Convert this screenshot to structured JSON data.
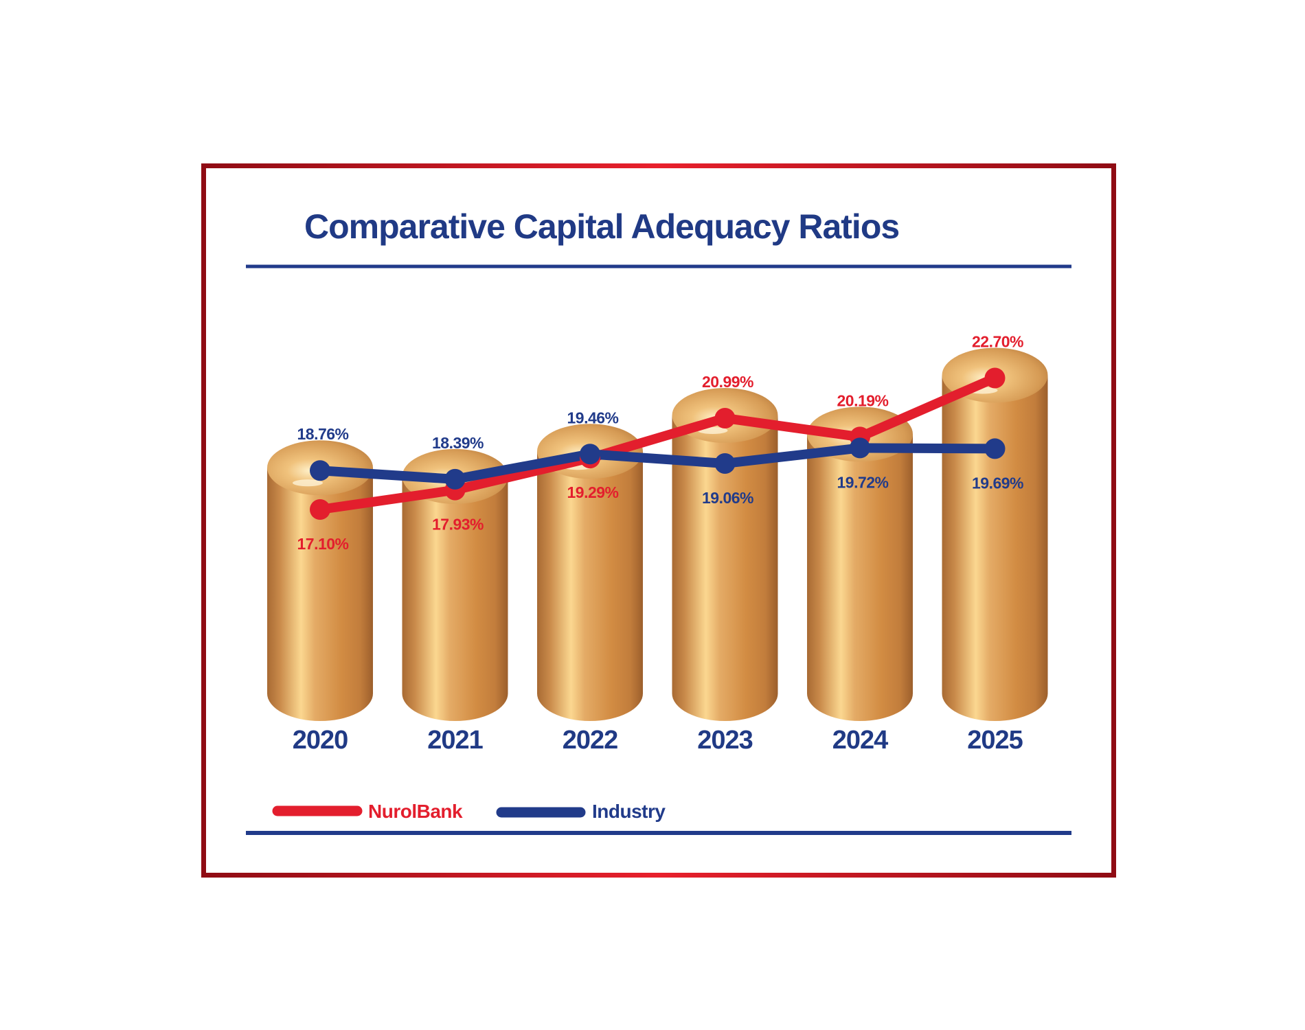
{
  "chart_data": {
    "type": "line",
    "title": "Comparative Capital Adequacy Ratios",
    "categories": [
      "2020",
      "2021",
      "2022",
      "2023",
      "2024",
      "2025"
    ],
    "series": [
      {
        "name": "NurolBank",
        "color": "#e31e2d",
        "values": [
          17.1,
          17.93,
          19.29,
          20.99,
          20.19,
          22.7
        ],
        "labels": [
          "17.10%",
          "17.93%",
          "19.29%",
          "20.99%",
          "20.19%",
          "22.70%"
        ]
      },
      {
        "name": "Industry",
        "color": "#213b8a",
        "values": [
          18.76,
          18.39,
          19.46,
          19.06,
          19.72,
          19.69
        ],
        "labels": [
          "18.76%",
          "18.39%",
          "19.46%",
          "19.06%",
          "19.72%",
          "19.69%"
        ]
      }
    ],
    "legend_position": "bottom-left",
    "grid": false,
    "colors": {
      "frame": "#b0141e",
      "rule": "#213b8a",
      "cylinder": "#d4954a"
    }
  }
}
